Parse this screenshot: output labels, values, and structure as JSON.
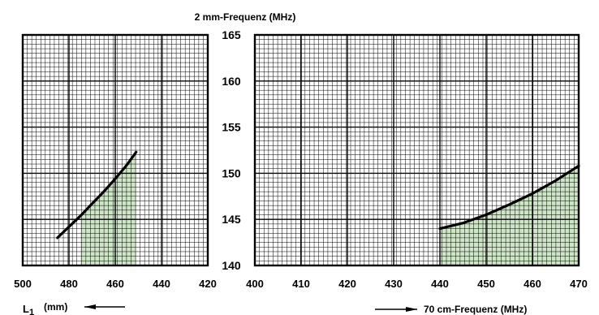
{
  "chart_data": {
    "type": "line",
    "title": "2 mm-Frequenz  (MHz)",
    "shared_axis": {
      "label": "2 mm-Frequenz  (MHz)",
      "ylim": [
        140,
        165
      ],
      "ticks": [
        "140",
        "145",
        "150",
        "155",
        "160",
        "165"
      ]
    },
    "left_panel": {
      "xlabel": "(mm)",
      "xlabel_symbol": "L",
      "xlabel_subscript": "1",
      "xlim": [
        500,
        420
      ],
      "ticks": [
        "500",
        "480",
        "460",
        "440",
        "420"
      ],
      "fill_from_x": 475,
      "series": [
        {
          "x": [
            485,
            480,
            475,
            470,
            465,
            460,
            455,
            451
          ],
          "y": [
            143.0,
            144.2,
            145.4,
            146.7,
            148.0,
            149.4,
            150.9,
            152.3
          ]
        }
      ]
    },
    "right_panel": {
      "xlabel": "70 cm-Frequenz  (MHz)",
      "xlim": [
        400,
        470
      ],
      "ticks": [
        "400",
        "410",
        "420",
        "430",
        "440",
        "450",
        "460",
        "470"
      ],
      "fill_from_x": 440,
      "series": [
        {
          "x": [
            440,
            445,
            450,
            455,
            460,
            465,
            470
          ],
          "y": [
            144.0,
            144.6,
            145.5,
            146.6,
            147.8,
            149.2,
            150.8
          ]
        }
      ]
    },
    "grid": true,
    "colors": {
      "curve": "#000000",
      "fill": "#cfe5c8",
      "grid": "#000000"
    }
  }
}
